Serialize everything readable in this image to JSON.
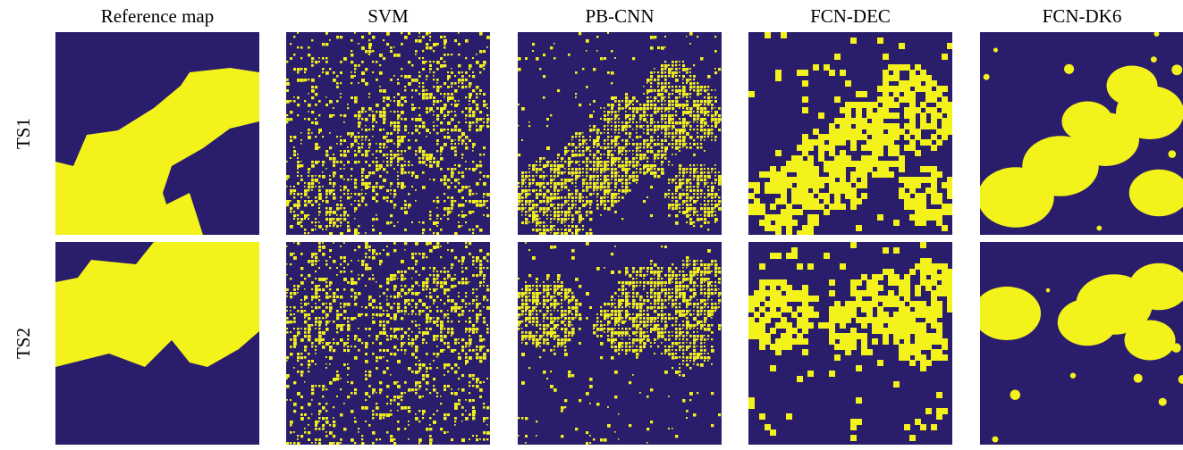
{
  "columns": [
    "Reference map",
    "SVM",
    "PB-CNN",
    "FCN-DEC",
    "FCN-DK6"
  ],
  "rows": [
    "TS1",
    "TS2"
  ]
}
